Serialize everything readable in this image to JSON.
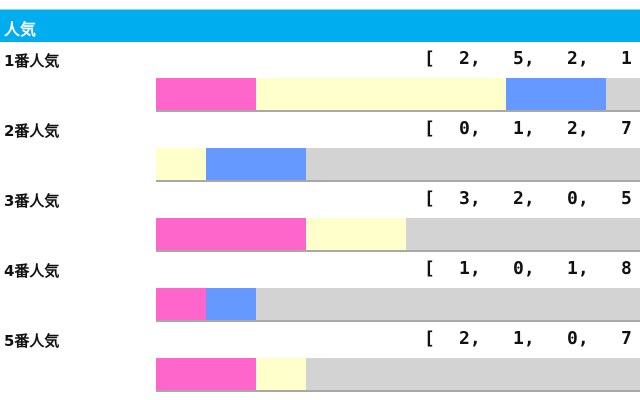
{
  "header": {
    "title": "人気"
  },
  "chart_data": {
    "type": "bar",
    "stacked": true,
    "orientation": "horizontal",
    "colors": {
      "1着": "#ff66cc",
      "2着": "#ffffcc",
      "3着": "#6699ff",
      "着外": "#d3d3d3"
    },
    "categories": [
      "1番人気",
      "2番人気",
      "3番人気",
      "4番人気",
      "5番人気"
    ],
    "records": [
      [
        2,
        5,
        2,
        1
      ],
      [
        0,
        1,
        2,
        7
      ],
      [
        3,
        2,
        0,
        5
      ],
      [
        1,
        0,
        1,
        8
      ],
      [
        2,
        1,
        0,
        7
      ]
    ]
  }
}
